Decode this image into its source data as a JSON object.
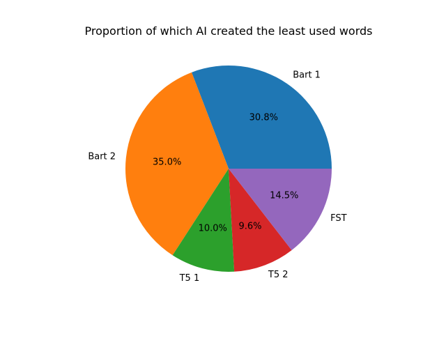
{
  "chart_data": {
    "type": "pie",
    "title": "Proportion of which AI created the least used words",
    "start_angle_deg": 0,
    "direction": "counterclockwise",
    "slices": [
      {
        "label": "Bart 1",
        "value": 30.8,
        "pct_text": "30.8%",
        "color": "#1f77b4"
      },
      {
        "label": "Bart 2",
        "value": 35.0,
        "pct_text": "35.0%",
        "color": "#ff7f0e"
      },
      {
        "label": "T5 1",
        "value": 10.0,
        "pct_text": "10.0%",
        "color": "#2ca02c"
      },
      {
        "label": "T5 2",
        "value": 9.6,
        "pct_text": "9.6%",
        "color": "#d62728"
      },
      {
        "label": "FST",
        "value": 14.5,
        "pct_text": "14.5%",
        "color": "#9467bd"
      }
    ]
  }
}
